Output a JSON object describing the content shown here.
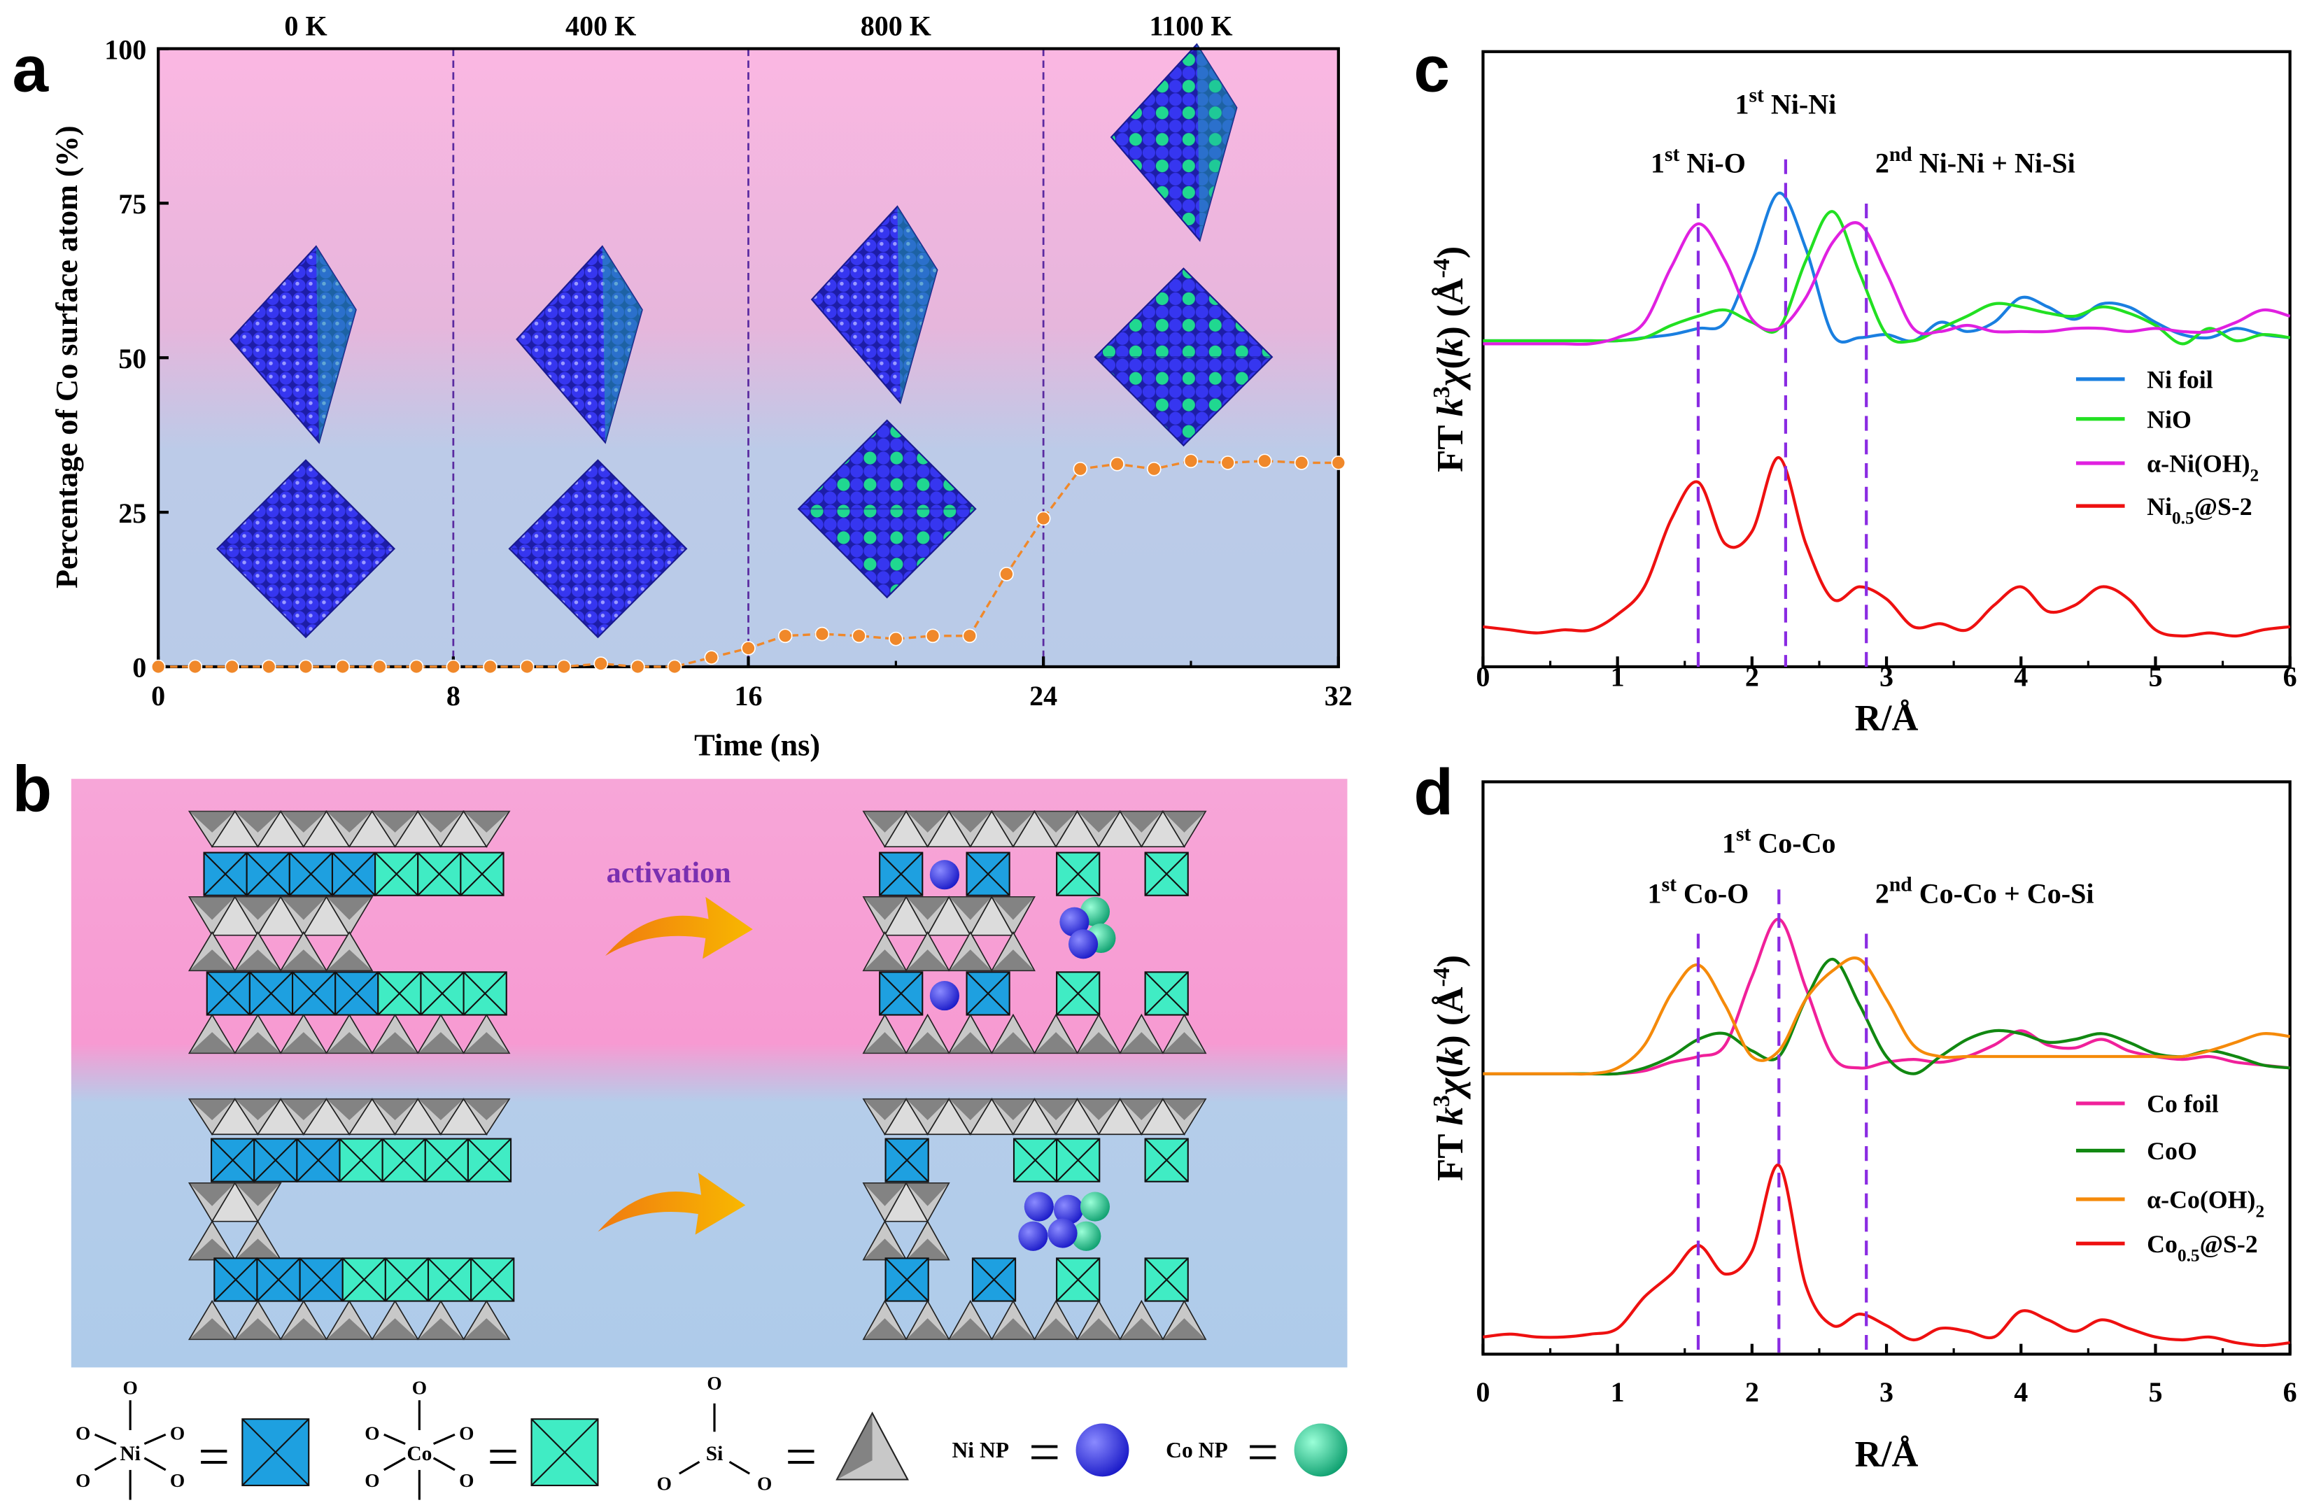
{
  "panels": {
    "a": "a",
    "b": "b",
    "c": "c",
    "d": "d"
  },
  "colors": {
    "ni_block": "#1ea0e0",
    "co_block": "#40ecc4",
    "ni_np": "#2a2ae8",
    "co_np": "#20c890",
    "points": "#f0882a",
    "vline": "#8a2be2",
    "activation": "#7a2fb0"
  },
  "chart_data": [
    {
      "type": "line",
      "panel": "a",
      "xlabel": "Time (ns)",
      "ylabel": "Percentage of Co surface atom (%)",
      "xlim": [
        0,
        32
      ],
      "ylim": [
        0,
        100
      ],
      "xticks": [
        "0",
        "8",
        "16",
        "24",
        "32"
      ],
      "yticks": [
        "0",
        "25",
        "50",
        "75",
        "100"
      ],
      "temperature_labels": [
        "0 K",
        "400 K",
        "800 K",
        "1100 K"
      ],
      "dividers": [
        8,
        16,
        24
      ],
      "x": [
        0,
        1,
        2,
        3,
        4,
        5,
        6,
        7,
        8,
        9,
        10,
        11,
        12,
        13,
        14,
        15,
        16,
        17,
        18,
        19,
        20,
        21,
        22,
        23,
        24,
        25,
        26,
        27,
        28,
        29,
        30,
        31,
        32
      ],
      "y": [
        0,
        0,
        0,
        0,
        0,
        0,
        0,
        0,
        0,
        0,
        0,
        0,
        0.5,
        0,
        0,
        1.5,
        3,
        5,
        5.3,
        5,
        4.5,
        5,
        5,
        15,
        24,
        32,
        32.8,
        32,
        33.3,
        33,
        33.3,
        33,
        33
      ]
    },
    {
      "type": "line",
      "panel": "c",
      "xlabel": "R/Å",
      "ylabel": {
        "pre": "FT ",
        "k": "k",
        "exp": "3",
        "chi": "χ",
        "arg_open": "(",
        "arg": "k",
        "arg_close": ")",
        "unit": " (Å",
        "unit_exp": "-4",
        "close": ")"
      },
      "xlim": [
        0,
        6
      ],
      "xticks": [
        "0",
        "1",
        "2",
        "3",
        "4",
        "5",
        "6"
      ],
      "y_axis": "arbitrary units, no ticks",
      "grid": false,
      "legend_placement": "right",
      "annotations": [
        {
          "num": "1",
          "sup": "st",
          "label": " Ni-O",
          "x": 1.6
        },
        {
          "num": "1",
          "sup": "st",
          "label": " Ni-Ni",
          "x": 2.25
        },
        {
          "num": "2",
          "sup": "nd",
          "label": " Ni-Ni + Ni-Si",
          "x": 2.85
        }
      ],
      "x": [
        0,
        0.2,
        0.4,
        0.6,
        0.8,
        1.0,
        1.2,
        1.4,
        1.6,
        1.8,
        2.0,
        2.2,
        2.4,
        2.6,
        2.8,
        3.0,
        3.2,
        3.4,
        3.6,
        3.8,
        4.0,
        4.2,
        4.4,
        4.6,
        4.8,
        5.0,
        5.2,
        5.4,
        5.6,
        5.8,
        6.0
      ],
      "series": [
        {
          "name": "Ni foil",
          "sub": "",
          "after": "",
          "color": "#1a7fe0",
          "values": [
            0.53,
            0.53,
            0.53,
            0.53,
            0.53,
            0.53,
            0.535,
            0.54,
            0.55,
            0.56,
            0.66,
            0.77,
            0.68,
            0.54,
            0.535,
            0.54,
            0.53,
            0.56,
            0.545,
            0.56,
            0.6,
            0.585,
            0.565,
            0.59,
            0.585,
            0.56,
            0.54,
            0.535,
            0.55,
            0.54,
            0.535
          ]
        },
        {
          "name": "NiO",
          "sub": "",
          "after": "",
          "color": "#22e022",
          "values": [
            0.53,
            0.53,
            0.53,
            0.53,
            0.53,
            0.53,
            0.535,
            0.555,
            0.57,
            0.58,
            0.56,
            0.55,
            0.66,
            0.74,
            0.64,
            0.54,
            0.53,
            0.55,
            0.57,
            0.59,
            0.585,
            0.575,
            0.57,
            0.585,
            0.575,
            0.555,
            0.525,
            0.55,
            0.53,
            0.54,
            0.535
          ]
        },
        {
          "name": "α-Ni(OH)",
          "sub": "2",
          "after": "",
          "color": "#e020e0",
          "values": [
            0.525,
            0.525,
            0.525,
            0.525,
            0.525,
            0.535,
            0.56,
            0.65,
            0.72,
            0.66,
            0.565,
            0.55,
            0.6,
            0.69,
            0.72,
            0.64,
            0.55,
            0.545,
            0.555,
            0.545,
            0.545,
            0.545,
            0.55,
            0.55,
            0.545,
            0.55,
            0.545,
            0.545,
            0.56,
            0.58,
            0.57
          ]
        },
        {
          "name": "Ni",
          "sub": "0.5",
          "after": "@S-2",
          "color": "#ee1010",
          "values": [
            0.065,
            0.06,
            0.055,
            0.06,
            0.06,
            0.085,
            0.13,
            0.24,
            0.3,
            0.2,
            0.22,
            0.34,
            0.2,
            0.11,
            0.13,
            0.11,
            0.065,
            0.07,
            0.06,
            0.1,
            0.13,
            0.09,
            0.1,
            0.13,
            0.11,
            0.06,
            0.05,
            0.055,
            0.05,
            0.06,
            0.065
          ]
        }
      ]
    },
    {
      "type": "line",
      "panel": "d",
      "xlabel": "R/Å",
      "ylabel": {
        "pre": "FT ",
        "k": "k",
        "exp": "3",
        "chi": "χ",
        "arg_open": "(",
        "arg": "k",
        "arg_close": ")",
        "unit": " (Å",
        "unit_exp": "-4",
        "close": ")"
      },
      "xlim": [
        0,
        6
      ],
      "xticks": [
        "0",
        "1",
        "2",
        "3",
        "4",
        "5",
        "6"
      ],
      "y_axis": "arbitrary units, no ticks",
      "grid": false,
      "legend_placement": "right",
      "annotations": [
        {
          "num": "1",
          "sup": "st",
          "label": " Co-O",
          "x": 1.6
        },
        {
          "num": "1",
          "sup": "st",
          "label": " Co-Co",
          "x": 2.2
        },
        {
          "num": "2",
          "sup": "nd",
          "label": " Co-Co + Co-Si",
          "x": 2.85
        }
      ],
      "x": [
        0,
        0.2,
        0.4,
        0.6,
        0.8,
        1.0,
        1.2,
        1.4,
        1.6,
        1.8,
        2.0,
        2.2,
        2.4,
        2.6,
        2.8,
        3.0,
        3.2,
        3.4,
        3.6,
        3.8,
        4.0,
        4.2,
        4.4,
        4.6,
        4.8,
        5.0,
        5.2,
        5.4,
        5.6,
        5.8,
        6.0
      ],
      "series": [
        {
          "name": "Co foil",
          "sub": "",
          "after": "",
          "color": "#f0209a",
          "values": [
            0.49,
            0.49,
            0.49,
            0.49,
            0.49,
            0.49,
            0.495,
            0.51,
            0.52,
            0.54,
            0.66,
            0.76,
            0.64,
            0.52,
            0.5,
            0.51,
            0.515,
            0.51,
            0.52,
            0.54,
            0.565,
            0.54,
            0.535,
            0.55,
            0.53,
            0.52,
            0.515,
            0.52,
            0.51,
            0.505,
            0.5
          ]
        },
        {
          "name": "CoO",
          "sub": "",
          "after": "",
          "color": "#118811",
          "values": [
            0.49,
            0.49,
            0.49,
            0.49,
            0.49,
            0.49,
            0.5,
            0.52,
            0.55,
            0.56,
            0.53,
            0.52,
            0.62,
            0.69,
            0.61,
            0.52,
            0.49,
            0.52,
            0.55,
            0.565,
            0.56,
            0.545,
            0.55,
            0.56,
            0.545,
            0.525,
            0.52,
            0.53,
            0.52,
            0.505,
            0.5
          ]
        },
        {
          "name": "α-Co(OH)",
          "sub": "2",
          "after": "",
          "color": "#f58a0a",
          "values": [
            0.49,
            0.49,
            0.49,
            0.49,
            0.49,
            0.5,
            0.54,
            0.63,
            0.68,
            0.61,
            0.52,
            0.53,
            0.62,
            0.67,
            0.69,
            0.62,
            0.54,
            0.52,
            0.52,
            0.52,
            0.52,
            0.52,
            0.52,
            0.52,
            0.52,
            0.52,
            0.52,
            0.53,
            0.545,
            0.56,
            0.555
          ]
        },
        {
          "name": "Co",
          "sub": "0.5",
          "after": "@S-2",
          "color": "#ee1010",
          "values": [
            0.03,
            0.035,
            0.03,
            0.03,
            0.035,
            0.045,
            0.1,
            0.14,
            0.19,
            0.14,
            0.18,
            0.33,
            0.12,
            0.05,
            0.07,
            0.05,
            0.025,
            0.045,
            0.04,
            0.03,
            0.075,
            0.06,
            0.04,
            0.06,
            0.045,
            0.03,
            0.025,
            0.03,
            0.02,
            0.015,
            0.02
          ]
        }
      ]
    }
  ],
  "schematic": {
    "activation_label": "activation",
    "legend": {
      "o": "O",
      "ni": "Ni",
      "co": "Co",
      "si": "Si",
      "equals": "=",
      "ni_np": "Ni NP",
      "co_np": "Co NP"
    }
  }
}
